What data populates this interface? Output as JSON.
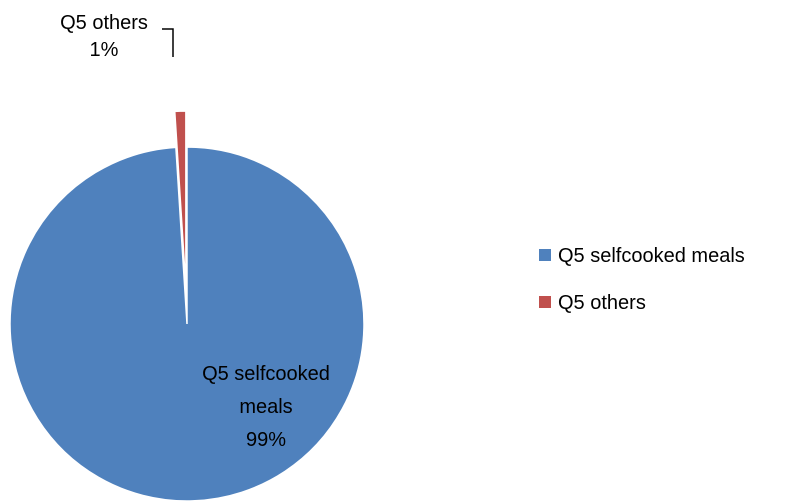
{
  "chart_data": {
    "type": "pie",
    "title": "",
    "slices": [
      {
        "label": "Q5 selfcooked meals",
        "label_lines": [
          "Q5 selfcooked",
          "meals"
        ],
        "value": 99,
        "percent_label": "99%",
        "color": "#4F81BD"
      },
      {
        "label": "Q5 others",
        "label_lines": [
          "Q5 others"
        ],
        "value": 1,
        "percent_label": "1%",
        "color": "#C0504D"
      }
    ],
    "legend": {
      "position": "right",
      "entries": [
        "Q5 selfcooked meals",
        "Q5 others"
      ]
    },
    "others_slice_exploded": true
  }
}
